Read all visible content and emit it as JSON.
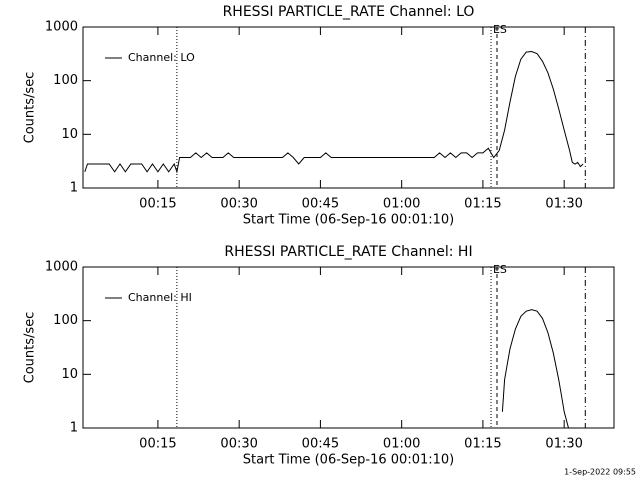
{
  "chart_data": [
    {
      "type": "line",
      "title": "RHESSI PARTICLE_RATE Channel: LO",
      "xlabel": "Start Time (06-Sep-16 00:01:10)",
      "ylabel": "Counts/sec",
      "log_y": true,
      "legend": "upper left",
      "color": "#000000",
      "xlim": [
        1.17,
        99.2
      ],
      "ylim": [
        1,
        1000
      ],
      "yticks": [
        1000,
        100,
        10,
        1
      ],
      "xticks": [
        {
          "value": 15,
          "label": "00:15"
        },
        {
          "value": 30,
          "label": "00:30"
        },
        {
          "value": 45,
          "label": "00:45"
        },
        {
          "value": 60,
          "label": "01:00"
        },
        {
          "value": 75,
          "label": "01:15"
        },
        {
          "value": 90,
          "label": "01:30"
        }
      ],
      "vlines": [
        {
          "x": 18.5,
          "style": "dotted"
        },
        {
          "x": 76.5,
          "style": "dotted"
        },
        {
          "x": 77.6,
          "style": "dashed"
        },
        {
          "x": 93.9,
          "style": "dash-dot"
        }
      ],
      "annotations": [
        {
          "text": "ES",
          "x": 77.6
        }
      ],
      "x": [
        1.5,
        2,
        3,
        4,
        5,
        6,
        7,
        8,
        9,
        10,
        11,
        12,
        13,
        14,
        15,
        16,
        17,
        18,
        18.5,
        19,
        20,
        21,
        22,
        23,
        24,
        25,
        26,
        27,
        28,
        29,
        30,
        31,
        32,
        33,
        34,
        35,
        36,
        37,
        38,
        39,
        40,
        41,
        42,
        43,
        44,
        45,
        46,
        47,
        48,
        49,
        50,
        51,
        52,
        53,
        54,
        55,
        56,
        57,
        58,
        59,
        60,
        61,
        62,
        63,
        64,
        65,
        66,
        67,
        68,
        69,
        70,
        71,
        72,
        73,
        74,
        75,
        76,
        77,
        78,
        79,
        80,
        81,
        82,
        83,
        84,
        85,
        86,
        87,
        88,
        89,
        90,
        91,
        91.5,
        92,
        92.5,
        93,
        93.5
      ],
      "series": [
        {
          "name": "Channel: LO",
          "color": "#000000",
          "values": [
            2.0,
            2.8,
            2.8,
            2.8,
            2.8,
            2.8,
            2.0,
            2.8,
            2.0,
            2.8,
            2.8,
            2.8,
            2.0,
            2.8,
            2.0,
            2.8,
            2.0,
            2.8,
            2.0,
            3.7,
            3.7,
            3.7,
            4.5,
            3.7,
            4.5,
            3.7,
            3.7,
            3.7,
            4.5,
            3.7,
            3.7,
            3.7,
            3.7,
            3.7,
            3.7,
            3.7,
            3.7,
            3.7,
            3.7,
            4.5,
            3.7,
            2.8,
            3.7,
            3.7,
            3.7,
            3.7,
            4.5,
            3.7,
            3.7,
            3.7,
            3.7,
            3.7,
            3.7,
            3.7,
            3.7,
            3.7,
            3.7,
            3.7,
            3.7,
            3.7,
            3.7,
            3.7,
            3.7,
            3.7,
            3.7,
            3.7,
            3.7,
            4.5,
            3.7,
            4.5,
            3.7,
            4.5,
            4.5,
            3.7,
            4.5,
            4.5,
            5.5,
            3.7,
            5,
            12,
            40,
            120,
            250,
            340,
            350,
            320,
            230,
            140,
            70,
            30,
            12,
            5,
            3,
            2.8,
            3,
            2.5,
            2.8
          ]
        }
      ]
    },
    {
      "type": "line",
      "title": "RHESSI PARTICLE_RATE Channel: HI",
      "xlabel": "Start Time (06-Sep-16 00:01:10)",
      "ylabel": "Counts/sec",
      "log_y": true,
      "legend": "upper left",
      "color": "#000000",
      "xlim": [
        1.17,
        99.2
      ],
      "ylim": [
        1,
        1000
      ],
      "yticks": [
        1000,
        100,
        10,
        1
      ],
      "xticks": [
        {
          "value": 15,
          "label": "00:15"
        },
        {
          "value": 30,
          "label": "00:30"
        },
        {
          "value": 45,
          "label": "00:45"
        },
        {
          "value": 60,
          "label": "01:00"
        },
        {
          "value": 75,
          "label": "01:15"
        },
        {
          "value": 90,
          "label": "01:30"
        }
      ],
      "vlines": [
        {
          "x": 18.5,
          "style": "dotted"
        },
        {
          "x": 76.5,
          "style": "dotted"
        },
        {
          "x": 77.6,
          "style": "dashed"
        },
        {
          "x": 93.9,
          "style": "dash-dot"
        }
      ],
      "annotations": [
        {
          "text": "ES",
          "x": 77.6
        }
      ],
      "x": [
        78.6,
        79,
        80,
        81,
        82,
        83,
        84,
        85,
        86,
        87,
        88,
        89,
        89.5,
        90,
        90.8
      ],
      "series": [
        {
          "name": "Channel: HI",
          "color": "#000000",
          "values": [
            2,
            8,
            30,
            70,
            120,
            150,
            160,
            150,
            110,
            60,
            25,
            8,
            4,
            2,
            1
          ]
        }
      ]
    }
  ],
  "footer": "1-Sep-2022 09:55"
}
